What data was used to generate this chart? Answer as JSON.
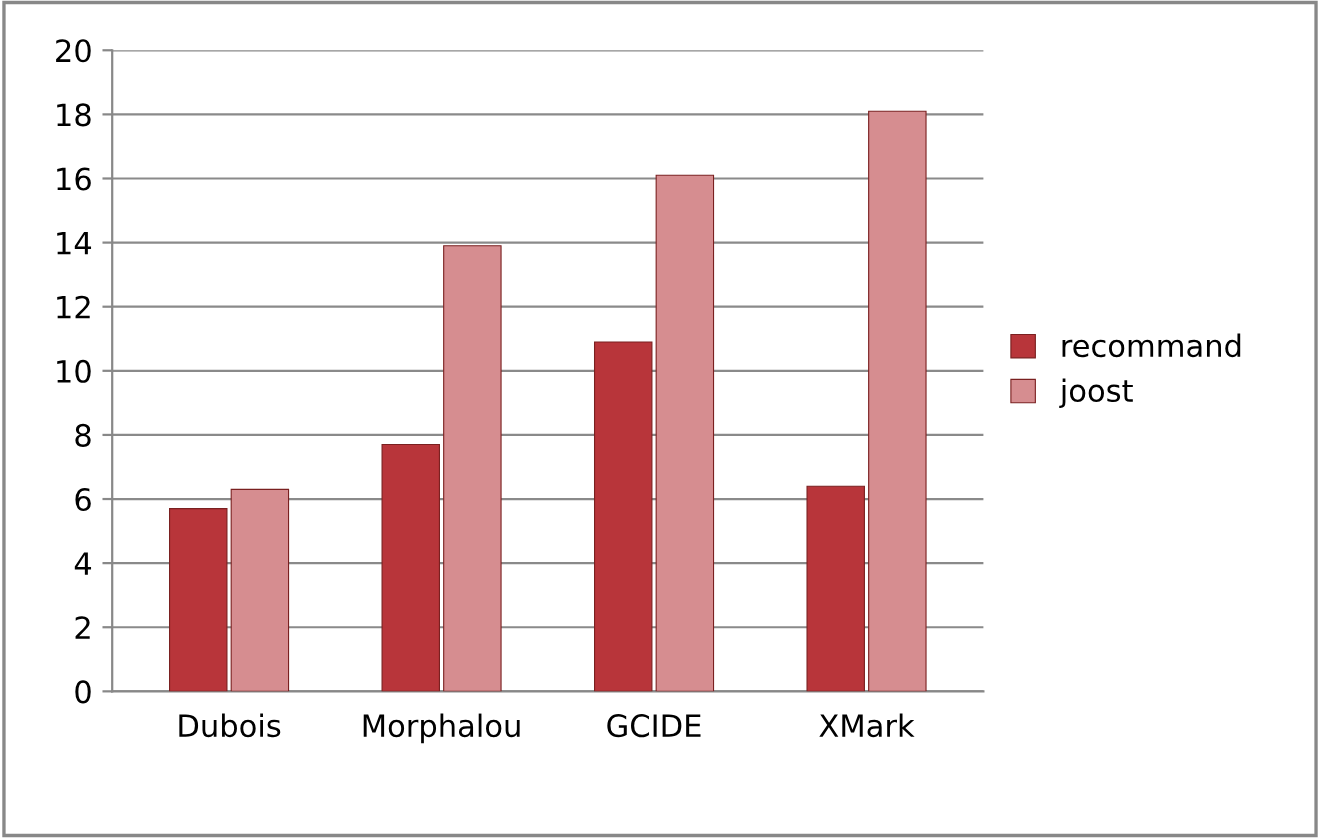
{
  "chart_data": {
    "type": "bar",
    "categories": [
      "Dubois",
      "Morphalou",
      "GCIDE",
      "XMark"
    ],
    "series": [
      {
        "name": "recommand",
        "color": "#b8353a",
        "values": [
          5.7,
          7.7,
          10.9,
          6.4
        ]
      },
      {
        "name": "joost",
        "color": "#d68d90",
        "values": [
          6.3,
          13.9,
          16.1,
          18.1
        ]
      }
    ],
    "ylim": [
      0,
      20
    ],
    "yticks": [
      0,
      2,
      4,
      6,
      8,
      10,
      12,
      14,
      16,
      18,
      20
    ],
    "grid": "y",
    "legend": "right"
  }
}
